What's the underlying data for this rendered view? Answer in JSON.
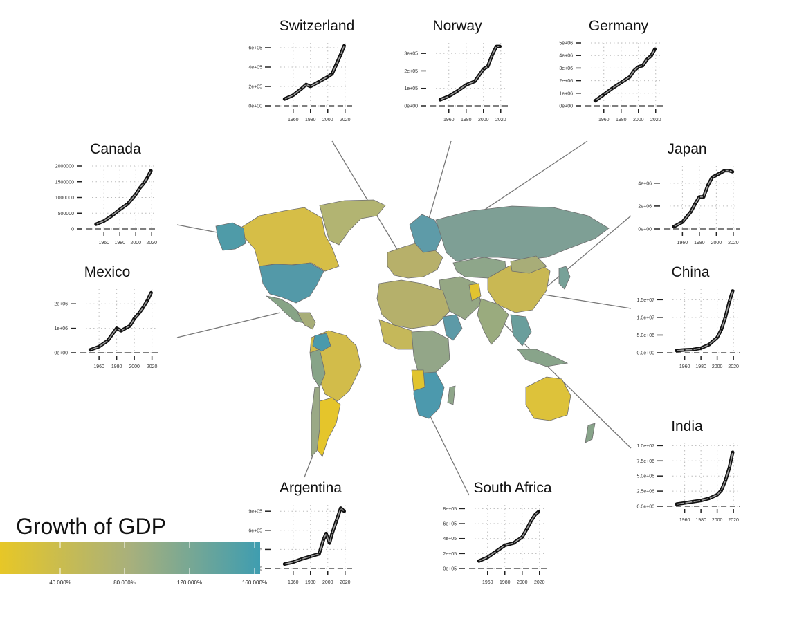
{
  "chart_data": {
    "type": "line",
    "map": {
      "subject": "world choropleth",
      "fill_scale": "Growth of GDP",
      "fill_low": "#e7c727",
      "fill_mid": "#a8b07c",
      "fill_high": "#3f9db0"
    },
    "legend": {
      "title": "Growth of GDP",
      "ticks": [
        "40 000%",
        "80 000%",
        "120 000%",
        "160 000%"
      ],
      "tick_values": [
        40000,
        80000,
        120000,
        160000
      ],
      "range": [
        0,
        160000
      ],
      "colors": [
        "#e7c727",
        "#a8b07c",
        "#3f9db0"
      ],
      "placement": "bottom-left"
    },
    "series_color": "#000000",
    "insets": [
      {
        "name": "Switzerland",
        "xlim": [
          1945,
          2025
        ],
        "xticks": [
          "1960",
          "1980",
          "2000",
          "2020"
        ],
        "ylim": [
          0,
          650000
        ],
        "yticks": [
          0,
          200000,
          400000,
          600000
        ],
        "ytick_labels": [
          "0e+00",
          "2e+05",
          "4e+05",
          "6e+05"
        ],
        "points": [
          [
            1950,
            70000
          ],
          [
            1960,
            110000
          ],
          [
            1970,
            180000
          ],
          [
            1975,
            220000
          ],
          [
            1980,
            200000
          ],
          [
            1990,
            250000
          ],
          [
            2000,
            300000
          ],
          [
            2005,
            330000
          ],
          [
            2010,
            430000
          ],
          [
            2015,
            530000
          ],
          [
            2019,
            620000
          ]
        ]
      },
      {
        "name": "Norway",
        "xlim": [
          1945,
          2025
        ],
        "xticks": [
          "1960",
          "1980",
          "2000",
          "2020"
        ],
        "ylim": [
          0,
          360000
        ],
        "yticks": [
          0,
          100000,
          200000,
          300000
        ],
        "ytick_labels": [
          "0e+00",
          "1e+05",
          "2e+05",
          "3e+05"
        ],
        "points": [
          [
            1950,
            35000
          ],
          [
            1960,
            55000
          ],
          [
            1970,
            85000
          ],
          [
            1980,
            120000
          ],
          [
            1990,
            140000
          ],
          [
            2000,
            210000
          ],
          [
            2005,
            225000
          ],
          [
            2010,
            290000
          ],
          [
            2015,
            340000
          ],
          [
            2019,
            340000
          ]
        ]
      },
      {
        "name": "Germany",
        "xlim": [
          1945,
          2025
        ],
        "xticks": [
          "1960",
          "1980",
          "2000",
          "2020"
        ],
        "ylim": [
          0,
          5000000
        ],
        "yticks": [
          0,
          1000000,
          2000000,
          3000000,
          4000000,
          5000000
        ],
        "ytick_labels": [
          "0e+00",
          "1e+06",
          "2e+06",
          "3e+06",
          "4e+06",
          "5e+06"
        ],
        "points": [
          [
            1950,
            400000
          ],
          [
            1960,
            900000
          ],
          [
            1970,
            1400000
          ],
          [
            1980,
            1850000
          ],
          [
            1990,
            2300000
          ],
          [
            1995,
            2800000
          ],
          [
            2000,
            3100000
          ],
          [
            2005,
            3200000
          ],
          [
            2010,
            3700000
          ],
          [
            2015,
            4000000
          ],
          [
            2019,
            4500000
          ]
        ]
      },
      {
        "name": "Canada",
        "xlim": [
          1945,
          2025
        ],
        "xticks": [
          "1960",
          "1980",
          "2000",
          "2020"
        ],
        "ylim": [
          0,
          2000000
        ],
        "yticks": [
          0,
          500000,
          1000000,
          1500000,
          2000000
        ],
        "ytick_labels": [
          "0",
          "500000",
          "1000000",
          "1500000",
          "2000000"
        ],
        "points": [
          [
            1950,
            150000
          ],
          [
            1960,
            250000
          ],
          [
            1970,
            420000
          ],
          [
            1980,
            620000
          ],
          [
            1990,
            800000
          ],
          [
            2000,
            1100000
          ],
          [
            2005,
            1300000
          ],
          [
            2010,
            1450000
          ],
          [
            2015,
            1650000
          ],
          [
            2019,
            1850000
          ]
        ]
      },
      {
        "name": "Japan",
        "xlim": [
          1945,
          2025
        ],
        "xticks": [
          "1960",
          "1980",
          "2000",
          "2020"
        ],
        "ylim": [
          0,
          5500000
        ],
        "yticks": [
          0,
          2000000,
          4000000
        ],
        "ytick_labels": [
          "0e+00",
          "2e+06",
          "4e+06"
        ],
        "points": [
          [
            1950,
            200000
          ],
          [
            1960,
            600000
          ],
          [
            1970,
            1500000
          ],
          [
            1975,
            2200000
          ],
          [
            1980,
            2800000
          ],
          [
            1985,
            2800000
          ],
          [
            1990,
            3800000
          ],
          [
            1995,
            4500000
          ],
          [
            2000,
            4700000
          ],
          [
            2005,
            4900000
          ],
          [
            2010,
            5100000
          ],
          [
            2015,
            5100000
          ],
          [
            2019,
            5000000
          ]
        ]
      },
      {
        "name": "Mexico",
        "xlim": [
          1945,
          2025
        ],
        "xticks": [
          "1960",
          "1980",
          "2000",
          "2020"
        ],
        "ylim": [
          0,
          2600000
        ],
        "yticks": [
          0,
          1000000,
          2000000
        ],
        "ytick_labels": [
          "0e+00",
          "1e+06",
          "2e+06"
        ],
        "points": [
          [
            1950,
            120000
          ],
          [
            1960,
            250000
          ],
          [
            1970,
            500000
          ],
          [
            1980,
            1000000
          ],
          [
            1985,
            900000
          ],
          [
            1990,
            1000000
          ],
          [
            1995,
            1100000
          ],
          [
            2000,
            1400000
          ],
          [
            2005,
            1600000
          ],
          [
            2010,
            1850000
          ],
          [
            2015,
            2150000
          ],
          [
            2019,
            2450000
          ]
        ]
      },
      {
        "name": "China",
        "xlim": [
          1945,
          2025
        ],
        "xticks": [
          "1960",
          "1980",
          "2000",
          "2020"
        ],
        "ylim": [
          0,
          18000000
        ],
        "yticks": [
          0,
          5000000,
          10000000,
          15000000
        ],
        "ytick_labels": [
          "0.0e+00",
          "5.0e+06",
          "1.0e+07",
          "1.5e+07"
        ],
        "points": [
          [
            1950,
            600000
          ],
          [
            1960,
            800000
          ],
          [
            1970,
            900000
          ],
          [
            1980,
            1300000
          ],
          [
            1990,
            2300000
          ],
          [
            2000,
            4300000
          ],
          [
            2005,
            6500000
          ],
          [
            2010,
            10000000
          ],
          [
            2015,
            14500000
          ],
          [
            2019,
            17500000
          ]
        ]
      },
      {
        "name": "India",
        "xlim": [
          1945,
          2025
        ],
        "xticks": [
          "1960",
          "1980",
          "2000",
          "2020"
        ],
        "ylim": [
          0,
          10500000
        ],
        "yticks": [
          0,
          2500000,
          5000000,
          7500000,
          10000000
        ],
        "ytick_labels": [
          "0.0e+00",
          "2.5e+06",
          "5.0e+06",
          "7.5e+06",
          "1.0e+07"
        ],
        "points": [
          [
            1950,
            350000
          ],
          [
            1960,
            550000
          ],
          [
            1970,
            750000
          ],
          [
            1980,
            950000
          ],
          [
            1990,
            1300000
          ],
          [
            2000,
            1900000
          ],
          [
            2005,
            2600000
          ],
          [
            2010,
            4200000
          ],
          [
            2015,
            6400000
          ],
          [
            2019,
            8900000
          ]
        ]
      },
      {
        "name": "Argentina",
        "xlim": [
          1945,
          2025
        ],
        "xticks": [
          "1960",
          "1980",
          "2000",
          "2020"
        ],
        "ylim": [
          0,
          1000000
        ],
        "yticks": [
          0,
          300000,
          600000,
          900000
        ],
        "ytick_labels": [
          "0e+00",
          "3e+05",
          "6e+05",
          "9e+05"
        ],
        "points": [
          [
            1950,
            70000
          ],
          [
            1960,
            100000
          ],
          [
            1970,
            150000
          ],
          [
            1980,
            190000
          ],
          [
            1990,
            230000
          ],
          [
            1995,
            450000
          ],
          [
            1998,
            550000
          ],
          [
            2002,
            400000
          ],
          [
            2005,
            550000
          ],
          [
            2010,
            750000
          ],
          [
            2015,
            950000
          ],
          [
            2019,
            900000
          ]
        ]
      },
      {
        "name": "South Africa",
        "xlim": [
          1945,
          2025
        ],
        "xticks": [
          "1960",
          "1980",
          "2000",
          "2020"
        ],
        "ylim": [
          0,
          850000
        ],
        "yticks": [
          0,
          200000,
          400000,
          600000,
          800000
        ],
        "ytick_labels": [
          "0e+05",
          "2e+05",
          "4e+05",
          "6e+05",
          "8e+05"
        ],
        "points": [
          [
            1950,
            100000
          ],
          [
            1960,
            150000
          ],
          [
            1970,
            230000
          ],
          [
            1980,
            310000
          ],
          [
            1990,
            340000
          ],
          [
            2000,
            420000
          ],
          [
            2005,
            520000
          ],
          [
            2010,
            630000
          ],
          [
            2015,
            720000
          ],
          [
            2019,
            760000
          ]
        ]
      }
    ]
  }
}
